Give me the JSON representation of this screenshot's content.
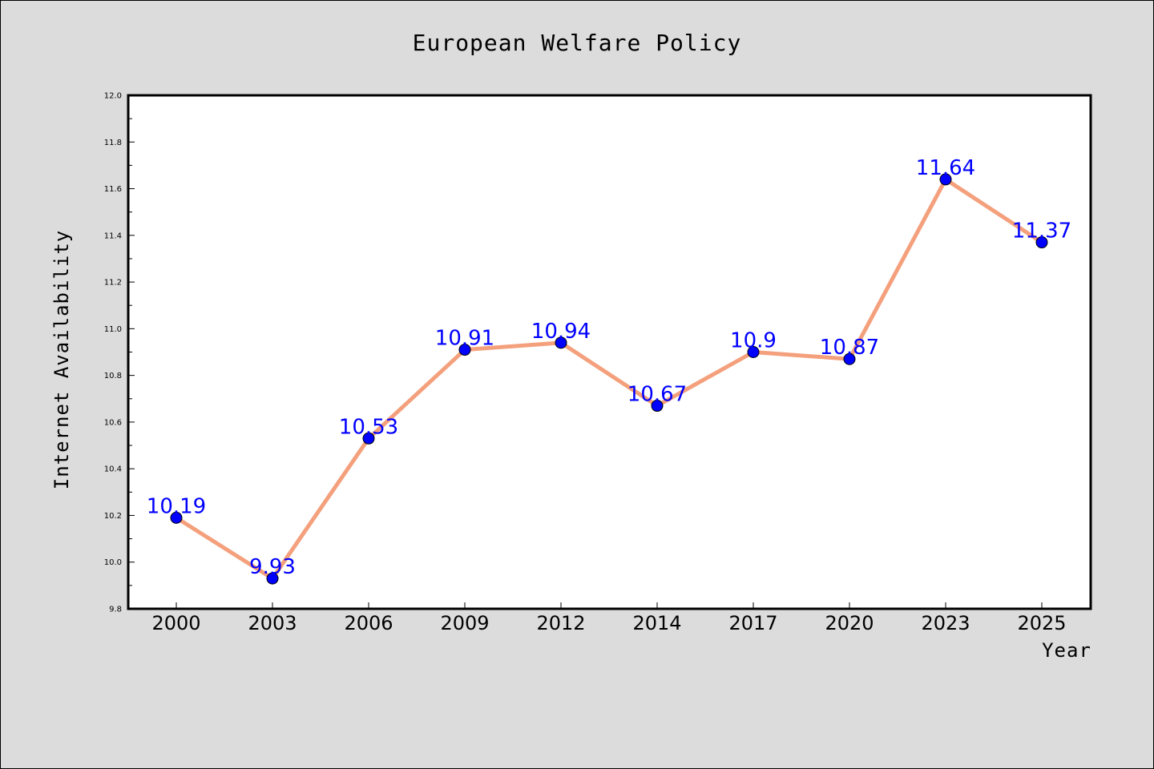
{
  "chart_data": {
    "type": "line",
    "title": "European Welfare Policy",
    "xlabel": "Year",
    "ylabel": "Internet Availability",
    "categories": [
      "2000",
      "2003",
      "2006",
      "2009",
      "2012",
      "2014",
      "2017",
      "2020",
      "2023",
      "2025"
    ],
    "series": [
      {
        "values": [
          10.19,
          9.93,
          10.53,
          10.91,
          10.94,
          10.67,
          10.9,
          10.87,
          11.64,
          11.37
        ],
        "line_color": "#f4a07c",
        "marker_color": "#0000ff"
      }
    ],
    "data_labels": [
      "10.19",
      "9.93",
      "10.53",
      "10.91",
      "10.94",
      "10.67",
      "10.9",
      "10.87",
      "11.64",
      "11.37"
    ],
    "ylim": [
      9.8,
      12.0
    ],
    "yticks": [
      "9.8",
      "10.0",
      "10.2",
      "10.4",
      "10.6",
      "10.8",
      "11.0",
      "11.2",
      "11.4",
      "11.6",
      "11.8",
      "12.0"
    ],
    "grid": false,
    "legend": "none",
    "colors": {
      "background": "#dcdcdc",
      "plot_background": "#ffffff",
      "line": "#f4a07c",
      "marker": "#0000ff",
      "data_label": "#0000ff"
    }
  }
}
